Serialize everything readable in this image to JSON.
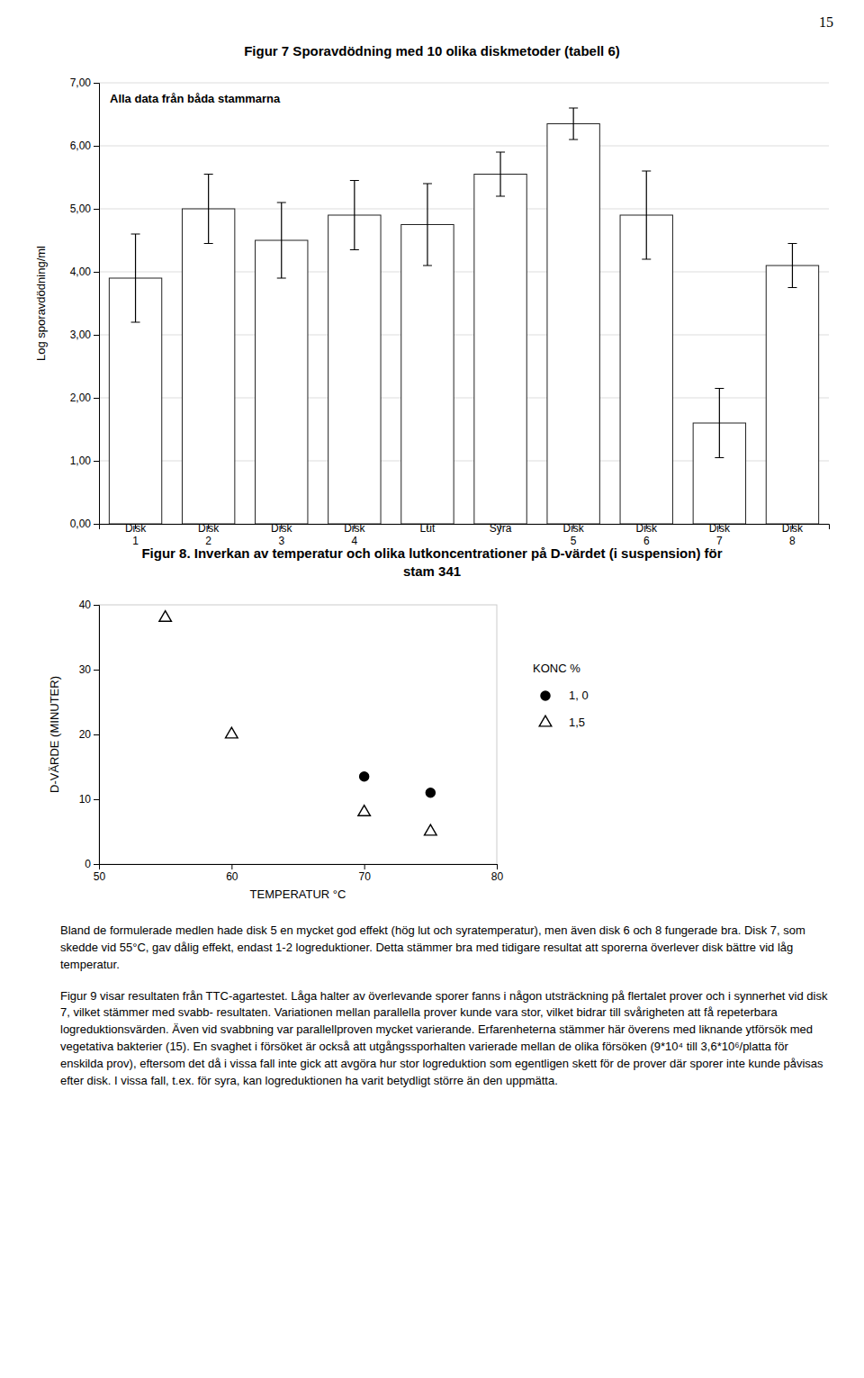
{
  "page_number": "15",
  "chart_data": [
    {
      "type": "bar",
      "title": "Figur 7 Sporavdödning med 10 olika diskmetoder (tabell 6)",
      "annotation": "Alla data från båda stammarna",
      "ylabel": "Log sporavdödning/ml",
      "categories": [
        "Disk\n1",
        "Disk\n2",
        "Disk\n3",
        "Disk\n4",
        "Lut",
        "Syra",
        "Disk\n5",
        "Disk\n6",
        "Disk\n7",
        "Disk\n8"
      ],
      "values": [
        3.9,
        5.0,
        4.5,
        4.9,
        4.75,
        5.55,
        6.35,
        4.9,
        1.6,
        4.1
      ],
      "errors": [
        0.7,
        0.55,
        0.6,
        0.55,
        0.65,
        0.35,
        0.25,
        0.7,
        0.55,
        0.35
      ],
      "color": "#ffffff",
      "ylim": [
        0.0,
        7.0
      ],
      "yticks": [
        {
          "value": 0.0,
          "label": "0,00"
        },
        {
          "value": 1.0,
          "label": "1,00"
        },
        {
          "value": 2.0,
          "label": "2,00"
        },
        {
          "value": 3.0,
          "label": "3,00"
        },
        {
          "value": 4.0,
          "label": "4,00"
        },
        {
          "value": 5.0,
          "label": "5,00"
        },
        {
          "value": 6.0,
          "label": "6,00"
        },
        {
          "value": 7.0,
          "label": "7,00"
        }
      ],
      "grid": true
    },
    {
      "type": "scatter",
      "title": "Figur 8. Inverkan av temperatur och olika lutkoncentrationer på D-värdet (i suspension) för\nstam 341",
      "xlabel": "TEMPERATUR °C",
      "ylabel": "D-VÄRDE (MINUTER)",
      "xlim": [
        50,
        80
      ],
      "ylim": [
        0,
        40
      ],
      "xticks": [
        50,
        60,
        70,
        80
      ],
      "yticks": [
        0,
        10,
        20,
        30,
        40
      ],
      "grid": false,
      "legend": "right",
      "legend_title": "KONC  %",
      "series": [
        {
          "name": "1, 0",
          "marker": "circle",
          "color": "#000000",
          "x": [
            70,
            75
          ],
          "values": [
            13.5,
            11.0
          ]
        },
        {
          "name": "1,5",
          "marker": "triangle-open",
          "color": "#000000",
          "x": [
            55,
            60,
            70,
            75
          ],
          "values": [
            38.0,
            20.0,
            8.0,
            5.0
          ]
        }
      ]
    }
  ],
  "paragraphs": [
    "Bland de formulerade medlen hade disk 5 en mycket god effekt (hög lut och syratemperatur), men även disk 6 och 8 fungerade bra. Disk 7, som skedde vid 55°C, gav dålig effekt, endast 1-2 logreduktioner. Detta stämmer bra med tidigare resultat att sporerna överlever disk bättre vid låg temperatur.",
    "Figur 9 visar resultaten från TTC-agartestet. Låga halter av överlevande sporer fanns i någon utsträckning på flertalet prover och i synnerhet vid disk 7, vilket stämmer med svabb- resultaten. Variationen mellan parallella prover kunde vara stor, vilket bidrar till svårigheten att få repeterbara logreduktionsvärden. Även vid svabbning var parallellproven mycket varierande. Erfarenheterna stämmer här överens med liknande ytförsök med vegetativa bakterier (15). En svaghet i försöket är också att utgångssporhalten varierade mellan de olika försöken (9*10⁴ till 3,6*10⁶/platta för enskilda prov), eftersom det då i vissa fall inte gick att avgöra hur stor logreduktion som egentligen skett för de prover där sporer inte kunde påvisas efter disk. I vissa fall, t.ex. för syra, kan logreduktionen ha varit betydligt större än den uppmätta."
  ]
}
